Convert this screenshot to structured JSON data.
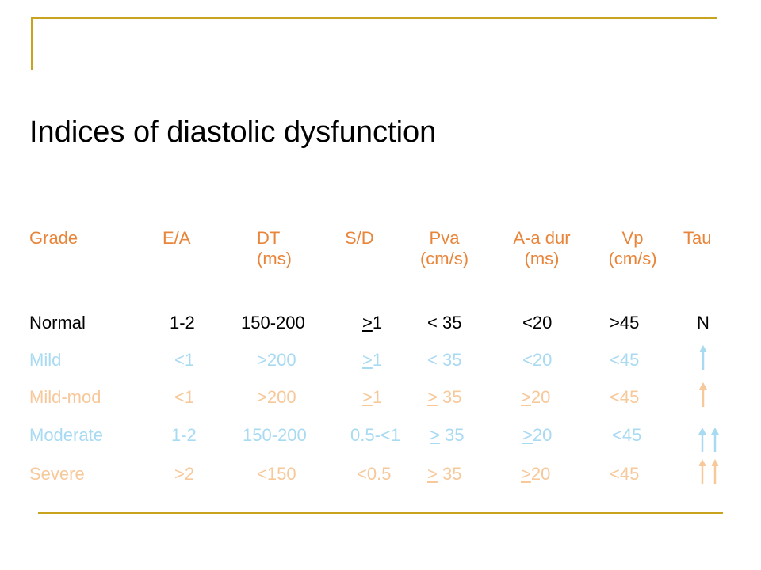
{
  "title": "Indices of diastolic dysfunction",
  "colors": {
    "frame": "#C8A31E",
    "header": "#E8853A",
    "normal": "#000000",
    "mild": "#A8DAF2",
    "mild_mod": "#F7C89A",
    "moderate": "#A8DAF2",
    "severe": "#F7C89A"
  },
  "headers": {
    "grade": "Grade",
    "ea": "E/A",
    "dt": "DT",
    "dt_unit": "(ms)",
    "sd": "S/D",
    "pva": "Pva",
    "pva_unit": "(cm/s)",
    "aadur": "A-a dur",
    "aadur_unit": "(ms)",
    "vp": "Vp",
    "vp_unit": "(cm/s)",
    "tau": "Tau"
  },
  "rows": [
    {
      "grade": "Normal",
      "ea": "1-2",
      "dt": "150-200",
      "sd_sym": ">",
      "sd": "1",
      "pva_sym": "",
      "pva": "< 35",
      "aa_sym": "",
      "aa": "<20",
      "vp": ">45",
      "tau": "N",
      "tau_arrows": "none"
    },
    {
      "grade": "Mild",
      "ea": "<1",
      "dt": ">200",
      "sd_sym": ">",
      "sd": "1",
      "pva_sym": "",
      "pva": "< 35",
      "aa_sym": "",
      "aa": "<20",
      "vp": "<45",
      "tau": "",
      "tau_arrows": "up-arrow-icon"
    },
    {
      "grade": "Mild-mod",
      "ea": "<1",
      "dt": ">200",
      "sd_sym": ">",
      "sd": "1",
      "pva_sym": ">",
      "pva": " 35",
      "aa_sym": ">",
      "aa": "20",
      "vp": "<45",
      "tau": "",
      "tau_arrows": "up-arrow-icon"
    },
    {
      "grade": "Moderate",
      "ea": "1-2",
      "dt": "150-200",
      "sd_sym": "",
      "sd": "0.5-<1",
      "pva_sym": ">",
      "pva": " 35",
      "aa_sym": ">",
      "aa": "20",
      "vp": "<45",
      "tau": "",
      "tau_arrows": "double-up-arrow-icon"
    },
    {
      "grade": "Severe",
      "ea": ">2",
      "dt": "<150",
      "sd_sym": "",
      "sd": "<0.5",
      "pva_sym": ">",
      "pva": " 35",
      "aa_sym": ">",
      "aa": "20",
      "vp": "<45",
      "tau": "",
      "tau_arrows": "double-up-arrow-icon"
    }
  ]
}
